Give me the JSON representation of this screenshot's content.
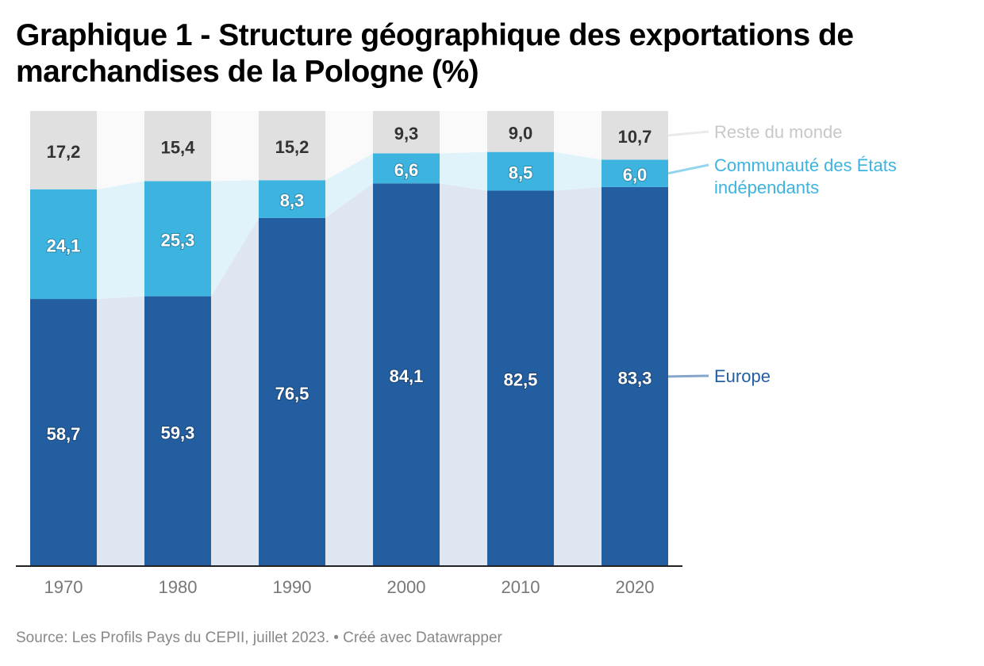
{
  "header": {
    "title": "Graphique 1 - Structure géographique des exportations de marchandises de la Pologne (%)"
  },
  "footer": {
    "source": "Source: Les Profils Pays du CEPII, juillet 2023. • Créé avec Datawrapper"
  },
  "chart_data": {
    "type": "bar",
    "stacked": true,
    "orientation": "vertical",
    "title": "Graphique 1 - Structure géographique des exportations de marchandises de la Pologne (%)",
    "xlabel": "",
    "ylabel": "",
    "ylim": [
      0,
      100
    ],
    "grid": false,
    "legend_placement": "right (inline labels)",
    "categories": [
      "1970",
      "1980",
      "1990",
      "2000",
      "2010",
      "2020"
    ],
    "series": [
      {
        "name": "Europe",
        "color": "#235ea0",
        "area_color": "#dfe6f1",
        "label_color": "#235ea0",
        "label_style": "light",
        "values": [
          58.7,
          59.3,
          76.5,
          84.1,
          82.5,
          83.3
        ],
        "labels": [
          "58,7",
          "59,3",
          "76,5",
          "84,1",
          "82,5",
          "83,3"
        ]
      },
      {
        "name": "Communauté des États indépendants",
        "color": "#3db3e0",
        "area_color": "#e0f3fb",
        "label_color": "#3db3e0",
        "label_style": "light",
        "values": [
          24.1,
          25.3,
          8.3,
          6.6,
          8.5,
          6.0
        ],
        "labels": [
          "24,1",
          "25,3",
          "8,3",
          "6,6",
          "8,5",
          "6,0"
        ]
      },
      {
        "name": "Reste du monde",
        "color": "#e0e0e0",
        "area_color": "#fafafa",
        "label_color": "#c8c8c8",
        "label_style": "dark",
        "values": [
          17.2,
          15.4,
          15.2,
          9.3,
          9.0,
          10.7
        ],
        "labels": [
          "17,2",
          "15,4",
          "15,2",
          "9,3",
          "9,0",
          "10,7"
        ]
      }
    ],
    "legend": [
      {
        "name": "Reste du monde",
        "lines": [
          "Reste du monde"
        ]
      },
      {
        "name": "Communauté des États indépendants",
        "lines": [
          "Communauté des États",
          "indépendants"
        ]
      },
      {
        "name": "Europe",
        "lines": [
          "Europe"
        ]
      }
    ]
  }
}
